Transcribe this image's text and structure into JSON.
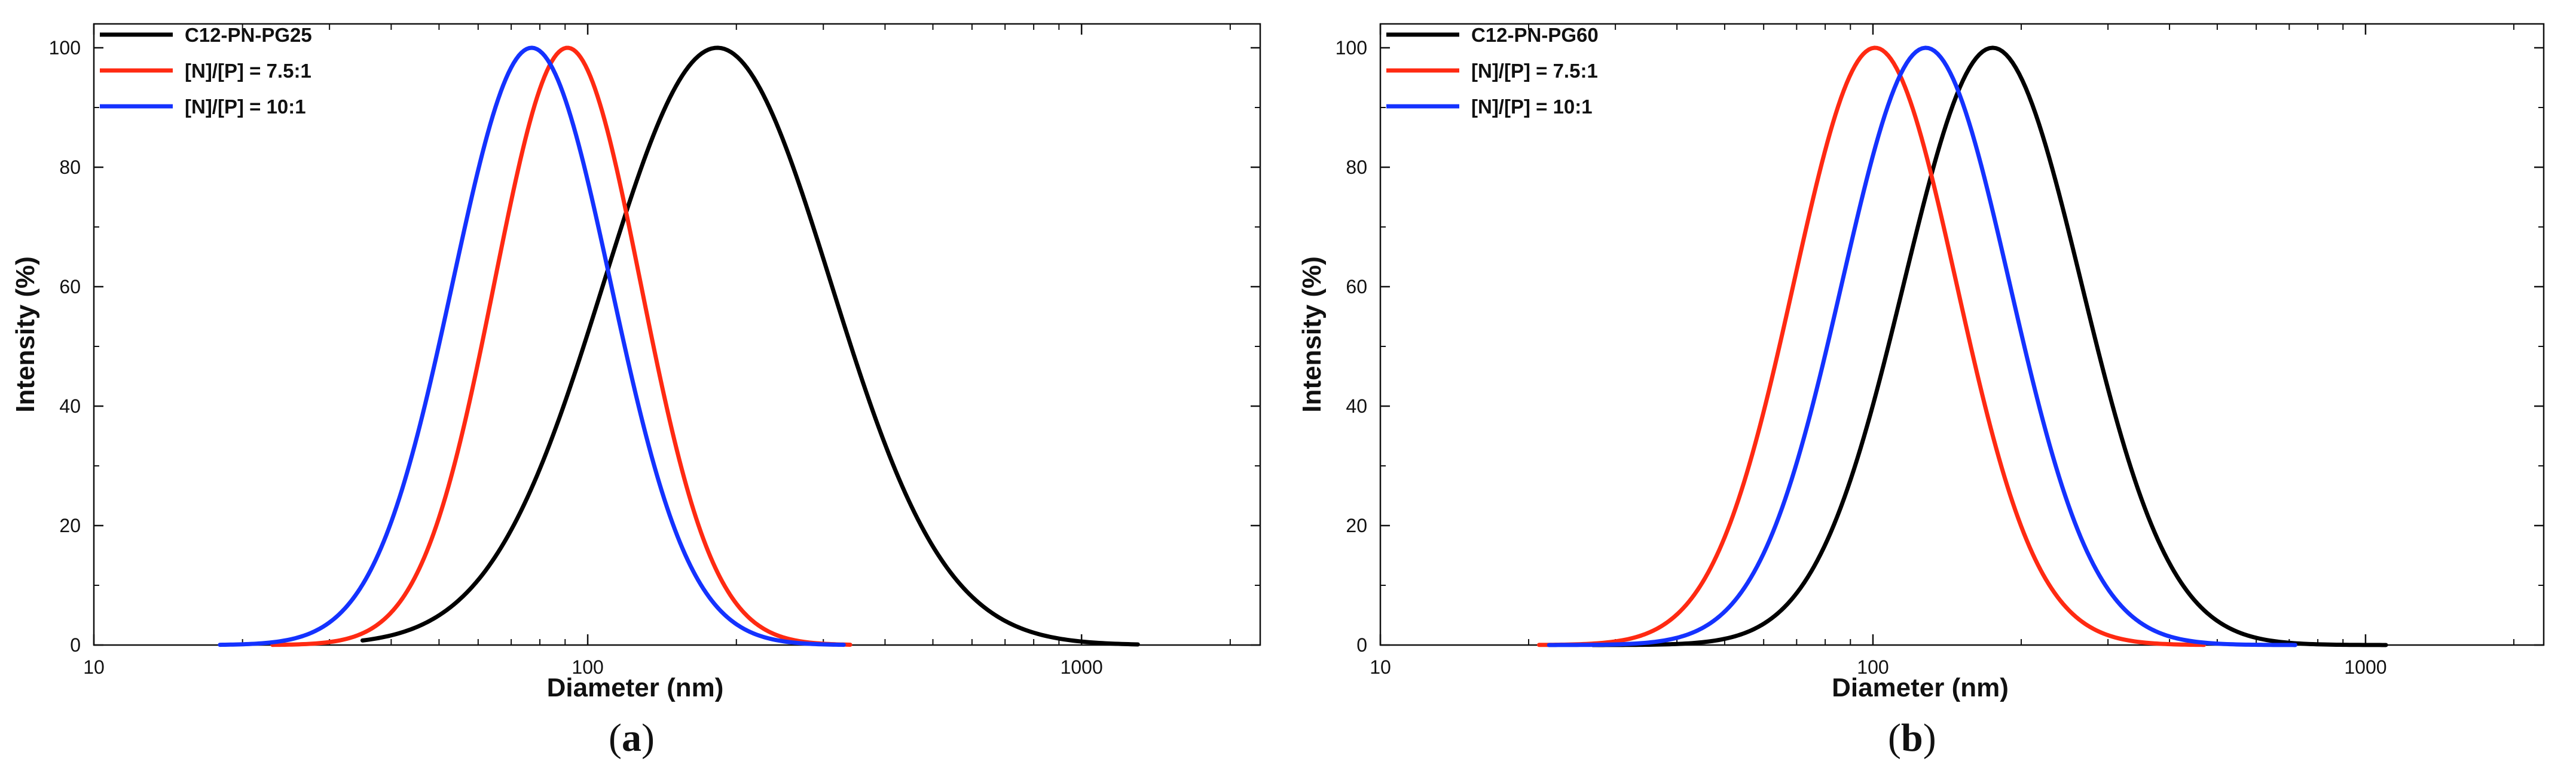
{
  "chart_data": [
    {
      "type": "line",
      "panel": "a",
      "xlabel": "Diameter (nm)",
      "ylabel": "Intensity (%)",
      "x_scale": "log",
      "xlim": [
        10,
        2300
      ],
      "ylim": [
        0,
        104
      ],
      "x_ticks": [
        10,
        100,
        1000
      ],
      "x_tick_labels": [
        "10",
        "100",
        "1000"
      ],
      "y_ticks": [
        0,
        20,
        40,
        60,
        80,
        100
      ],
      "y_tick_labels": [
        "0",
        "20",
        "40",
        "60",
        "80",
        "100"
      ],
      "legend_position": "top-left",
      "series": [
        {
          "name": "C12-PN-PG25",
          "color": "#000000",
          "peak_x": 183,
          "peak_y": 100,
          "log_sigma": 0.23,
          "x_range": [
            35,
            1300
          ]
        },
        {
          "name": "[N]/[P] = 7.5:1",
          "color": "#ff2a12",
          "peak_x": 91,
          "peak_y": 100,
          "log_sigma": 0.148,
          "x_range": [
            23,
            340
          ]
        },
        {
          "name": "[N]/[P] = 10:1",
          "color": "#1432ff",
          "peak_x": 77,
          "peak_y": 100,
          "log_sigma": 0.16,
          "x_range": [
            18,
            330
          ]
        }
      ]
    },
    {
      "type": "line",
      "panel": "b",
      "xlabel": "Diameter (nm)",
      "ylabel": "Intensity (%)",
      "x_scale": "log",
      "xlim": [
        10,
        2300
      ],
      "ylim": [
        0,
        104
      ],
      "x_ticks": [
        10,
        100,
        1000
      ],
      "x_tick_labels": [
        "10",
        "100",
        "1000"
      ],
      "y_ticks": [
        0,
        20,
        40,
        60,
        80,
        100
      ],
      "y_tick_labels": [
        "0",
        "20",
        "40",
        "60",
        "80",
        "100"
      ],
      "legend_position": "top-left",
      "series": [
        {
          "name": "C12-PN-PG60",
          "color": "#000000",
          "peak_x": 175,
          "peak_y": 100,
          "log_sigma": 0.18,
          "x_range": [
            27,
            1100
          ]
        },
        {
          "name": "[N]/[P] = 7.5:1",
          "color": "#ff2a12",
          "peak_x": 101,
          "peak_y": 100,
          "log_sigma": 0.165,
          "x_range": [
            21,
            470
          ]
        },
        {
          "name": "[N]/[P] = 10:1",
          "color": "#1432ff",
          "peak_x": 128,
          "peak_y": 100,
          "log_sigma": 0.17,
          "x_range": [
            22,
            720
          ]
        }
      ]
    }
  ],
  "captions": {
    "a": "a",
    "b": "b"
  }
}
